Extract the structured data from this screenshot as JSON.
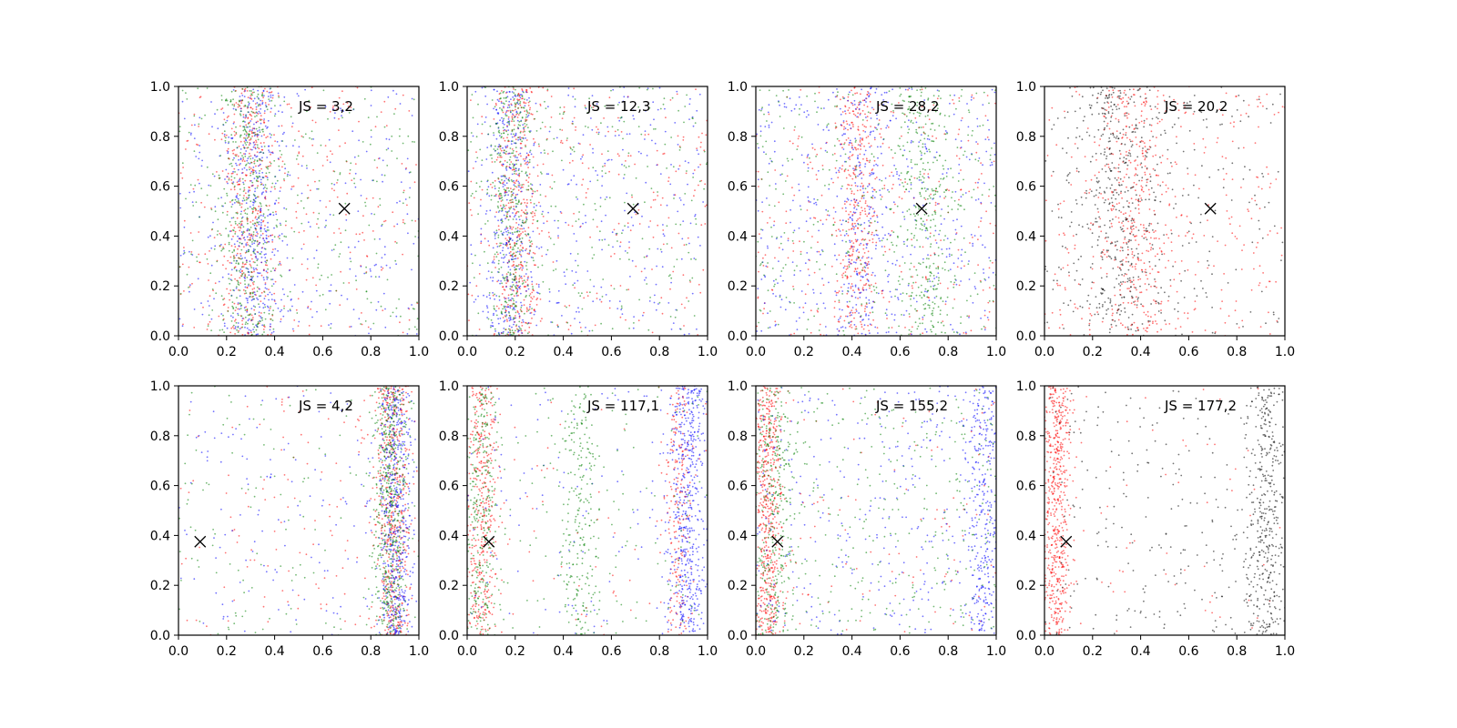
{
  "chart_data": [
    {
      "type": "scatter",
      "annotation": "JS = 3,2",
      "xlim": [
        0,
        1
      ],
      "ylim": [
        0,
        1
      ],
      "x_ticks": [
        "0.0",
        "0.2",
        "0.4",
        "0.6",
        "0.8",
        "1.0"
      ],
      "y_ticks": [
        "0.0",
        "0.2",
        "0.4",
        "0.6",
        "0.8",
        "1.0"
      ],
      "marker": {
        "x": 0.69,
        "y": 0.51,
        "symbol": "x"
      },
      "series": [
        {
          "color": "#ff0000",
          "band_center": 0.3,
          "band_width": 0.06,
          "band_share": 0.55,
          "background": [
            0.0,
            1.0
          ]
        },
        {
          "color": "#0000ff",
          "band_center": 0.32,
          "band_width": 0.06,
          "band_share": 0.55,
          "background": [
            0.0,
            1.0
          ]
        },
        {
          "color": "#008000",
          "band_center": 0.29,
          "band_width": 0.06,
          "band_share": 0.55,
          "background": [
            0.0,
            1.0
          ]
        }
      ]
    },
    {
      "type": "scatter",
      "annotation": "JS = 12,3",
      "xlim": [
        0,
        1
      ],
      "ylim": [
        0,
        1
      ],
      "x_ticks": [
        "0.0",
        "0.2",
        "0.4",
        "0.6",
        "0.8",
        "1.0"
      ],
      "y_ticks": [
        "0.0",
        "0.2",
        "0.4",
        "0.6",
        "0.8",
        "1.0"
      ],
      "marker": {
        "x": 0.69,
        "y": 0.51,
        "symbol": "x"
      },
      "series": [
        {
          "color": "#ff0000",
          "band_center": 0.21,
          "band_width": 0.045,
          "band_share": 0.6,
          "background": [
            0.0,
            1.0
          ]
        },
        {
          "color": "#0000ff",
          "band_center": 0.18,
          "band_width": 0.05,
          "band_share": 0.55,
          "background": [
            0.0,
            1.0
          ]
        },
        {
          "color": "#008000",
          "band_center": 0.19,
          "band_width": 0.045,
          "band_share": 0.6,
          "background": [
            0.0,
            1.0
          ]
        }
      ]
    },
    {
      "type": "scatter",
      "annotation": "JS = 28,2",
      "xlim": [
        0,
        1
      ],
      "ylim": [
        0,
        1
      ],
      "x_ticks": [
        "0.0",
        "0.2",
        "0.4",
        "0.6",
        "0.8",
        "1.0"
      ],
      "y_ticks": [
        "0.0",
        "0.2",
        "0.4",
        "0.6",
        "0.8",
        "1.0"
      ],
      "marker": {
        "x": 0.69,
        "y": 0.51,
        "symbol": "x"
      },
      "series": [
        {
          "color": "#ff0000",
          "band_center": 0.42,
          "band_width": 0.04,
          "band_share": 0.5,
          "background": [
            0.0,
            1.0
          ]
        },
        {
          "color": "#0000ff",
          "band_center": 0.44,
          "band_width": 0.05,
          "band_share": 0.35,
          "background": [
            0.0,
            1.0
          ]
        },
        {
          "color": "#008000",
          "band_center": 0.7,
          "band_width": 0.06,
          "band_share": 0.5,
          "background": [
            0.0,
            1.0
          ]
        }
      ]
    },
    {
      "type": "scatter",
      "annotation": "JS = 20,2",
      "xlim": [
        0,
        1
      ],
      "ylim": [
        0,
        1
      ],
      "x_ticks": [
        "0.0",
        "0.2",
        "0.4",
        "0.6",
        "0.8",
        "1.0"
      ],
      "y_ticks": [
        "0.0",
        "0.2",
        "0.4",
        "0.6",
        "0.8",
        "1.0"
      ],
      "marker": {
        "x": 0.69,
        "y": 0.51,
        "symbol": "x"
      },
      "series": [
        {
          "color": "#ff0000",
          "band_center": 0.38,
          "band_width": 0.08,
          "band_share": 0.6,
          "background": [
            0.0,
            1.0
          ]
        },
        {
          "color": "#000000",
          "band_center": 0.3,
          "band_width": 0.09,
          "band_share": 0.65,
          "background": [
            0.0,
            1.0
          ]
        }
      ]
    },
    {
      "type": "scatter",
      "annotation": "JS = 4,2",
      "xlim": [
        0,
        1
      ],
      "ylim": [
        0,
        1
      ],
      "x_ticks": [
        "0.0",
        "0.2",
        "0.4",
        "0.6",
        "0.8",
        "1.0"
      ],
      "y_ticks": [
        "0.0",
        "0.2",
        "0.4",
        "0.6",
        "0.8",
        "1.0"
      ],
      "marker": {
        "x": 0.09,
        "y": 0.375,
        "symbol": "x"
      },
      "series": [
        {
          "color": "#ff0000",
          "band_center": 0.89,
          "band_width": 0.035,
          "band_share": 0.8,
          "background": [
            0.0,
            1.0
          ]
        },
        {
          "color": "#0000ff",
          "band_center": 0.9,
          "band_width": 0.035,
          "band_share": 0.75,
          "background": [
            0.0,
            1.0
          ]
        },
        {
          "color": "#008000",
          "band_center": 0.88,
          "band_width": 0.035,
          "band_share": 0.8,
          "background": [
            0.0,
            1.0
          ]
        }
      ]
    },
    {
      "type": "scatter",
      "annotation": "JS = 117,1",
      "xlim": [
        0,
        1
      ],
      "ylim": [
        0,
        1
      ],
      "x_ticks": [
        "0.0",
        "0.2",
        "0.4",
        "0.6",
        "0.8",
        "1.0"
      ],
      "y_ticks": [
        "0.0",
        "0.2",
        "0.4",
        "0.6",
        "0.8",
        "1.0"
      ],
      "marker": {
        "x": 0.09,
        "y": 0.375,
        "symbol": "x"
      },
      "series": [
        {
          "color": "#ff0000",
          "band_center": 0.06,
          "band_width": 0.03,
          "band_share": 0.55,
          "band2_center": 0.88,
          "band2_width": 0.03,
          "band2_share": 0.35,
          "background": [
            0.0,
            1.0
          ]
        },
        {
          "color": "#0000ff",
          "band_center": 0.92,
          "band_width": 0.04,
          "band_share": 0.8,
          "background": [
            0.0,
            1.0
          ]
        },
        {
          "color": "#008000",
          "band_center": 0.06,
          "band_width": 0.03,
          "band_share": 0.45,
          "band2_center": 0.47,
          "band2_width": 0.04,
          "band2_share": 0.35,
          "background": [
            0.0,
            1.0
          ]
        }
      ]
    },
    {
      "type": "scatter",
      "annotation": "JS = 155,2",
      "xlim": [
        0,
        1
      ],
      "ylim": [
        0,
        1
      ],
      "x_ticks": [
        "0.0",
        "0.2",
        "0.4",
        "0.6",
        "0.8",
        "1.0"
      ],
      "y_ticks": [
        "0.0",
        "0.2",
        "0.4",
        "0.6",
        "0.8",
        "1.0"
      ],
      "marker": {
        "x": 0.09,
        "y": 0.375,
        "symbol": "x"
      },
      "series": [
        {
          "color": "#ff0000",
          "band_center": 0.05,
          "band_width": 0.03,
          "band_share": 0.85,
          "background": [
            0.0,
            1.0
          ]
        },
        {
          "color": "#0000ff",
          "band_center": 0.95,
          "band_width": 0.04,
          "band_share": 0.5,
          "background": [
            0.0,
            1.0
          ]
        },
        {
          "color": "#008000",
          "band_center": 0.08,
          "band_width": 0.04,
          "band_share": 0.45,
          "background": [
            0.0,
            1.0
          ]
        }
      ]
    },
    {
      "type": "scatter",
      "annotation": "JS = 177,2",
      "xlim": [
        0,
        1
      ],
      "ylim": [
        0,
        1
      ],
      "x_ticks": [
        "0.0",
        "0.2",
        "0.4",
        "0.6",
        "0.8",
        "1.0"
      ],
      "y_ticks": [
        "0.0",
        "0.2",
        "0.4",
        "0.6",
        "0.8",
        "1.0"
      ],
      "marker": {
        "x": 0.09,
        "y": 0.375,
        "symbol": "x"
      },
      "series": [
        {
          "color": "#ff0000",
          "band_center": 0.05,
          "band_width": 0.03,
          "band_share": 0.9,
          "background": [
            0.0,
            1.0
          ]
        },
        {
          "color": "#000000",
          "band_center": 0.92,
          "band_width": 0.04,
          "band_share": 0.6,
          "background": [
            0.0,
            1.0
          ]
        }
      ]
    }
  ]
}
